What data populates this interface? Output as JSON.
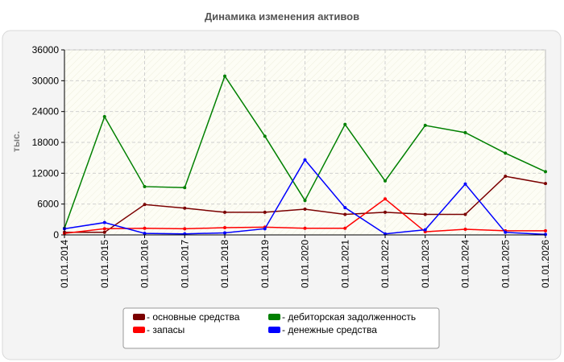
{
  "chart_data": {
    "type": "line",
    "title": "Динамика изменения активов",
    "ylabel": "тыс.",
    "xlabel": "",
    "ylim": [
      0,
      36000
    ],
    "yticks": [
      0,
      6000,
      12000,
      18000,
      24000,
      30000,
      36000
    ],
    "grid": true,
    "legend_position": "bottom",
    "categories": [
      "01.01.2014",
      "01.01.2015",
      "01.01.2016",
      "01.01.2017",
      "01.01.2018",
      "01.01.2019",
      "01.01.2020",
      "01.01.2021",
      "01.01.2022",
      "01.01.2023",
      "01.01.2024",
      "01.01.2025",
      "01.01.2026"
    ],
    "series": [
      {
        "name": "- основные средства",
        "color": "#7b0000",
        "values": [
          500,
          500,
          5900,
          5200,
          4400,
          4400,
          5000,
          4000,
          4400,
          4000,
          4000,
          11400,
          10000
        ]
      },
      {
        "name": "- запасы",
        "color": "#ff0000",
        "values": [
          300,
          1200,
          1300,
          1200,
          1400,
          1500,
          1300,
          1300,
          7000,
          600,
          1100,
          800,
          800
        ]
      },
      {
        "name": "- дебиторская задолженность",
        "color": "#008000",
        "values": [
          1300,
          23000,
          9400,
          9200,
          30900,
          19200,
          6700,
          21500,
          10500,
          21300,
          19900,
          15900,
          12300
        ]
      },
      {
        "name": "- денежные средства",
        "color": "#0000ff",
        "values": [
          1200,
          2400,
          300,
          200,
          400,
          1200,
          14600,
          5300,
          200,
          1000,
          9900,
          500,
          100
        ]
      }
    ]
  }
}
